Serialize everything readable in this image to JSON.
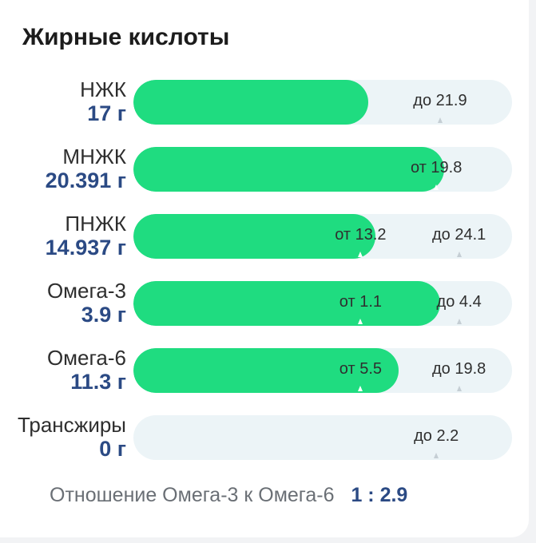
{
  "title": "Жирные кислоты",
  "colors": {
    "fill": "#1fdc80",
    "track": "#ecf4f7",
    "amount": "#2b4a84"
  },
  "rows": [
    {
      "name": "НЖК",
      "amount": "17 г",
      "fill_fraction": 0.62,
      "markers": [
        {
          "text": "до 21.9",
          "position": 0.81
        }
      ]
    },
    {
      "name": "МНЖК",
      "amount": "20.391 г",
      "fill_fraction": 0.82,
      "markers": [
        {
          "text": "от 19.8",
          "position": 0.8
        }
      ]
    },
    {
      "name": "ПНЖК",
      "amount": "14.937 г",
      "fill_fraction": 0.64,
      "markers": [
        {
          "text": "от 13.2",
          "position": 0.6
        },
        {
          "text": "до 24.1",
          "position": 0.86
        }
      ]
    },
    {
      "name": "Омега-3",
      "amount": "3.9 г",
      "fill_fraction": 0.81,
      "markers": [
        {
          "text": "от 1.1",
          "position": 0.6
        },
        {
          "text": "до 4.4",
          "position": 0.86
        }
      ]
    },
    {
      "name": "Омега-6",
      "amount": "11.3 г",
      "fill_fraction": 0.7,
      "markers": [
        {
          "text": "от 5.5",
          "position": 0.6
        },
        {
          "text": "до 19.8",
          "position": 0.86
        }
      ]
    },
    {
      "name": "Трансжиры",
      "amount": "0 г",
      "fill_fraction": 0,
      "markers": [
        {
          "text": "до 2.2",
          "position": 0.8
        }
      ]
    }
  ],
  "ratio": {
    "label": "Отношение Омега-3 к Омега-6",
    "value": "1 : 2.9"
  }
}
